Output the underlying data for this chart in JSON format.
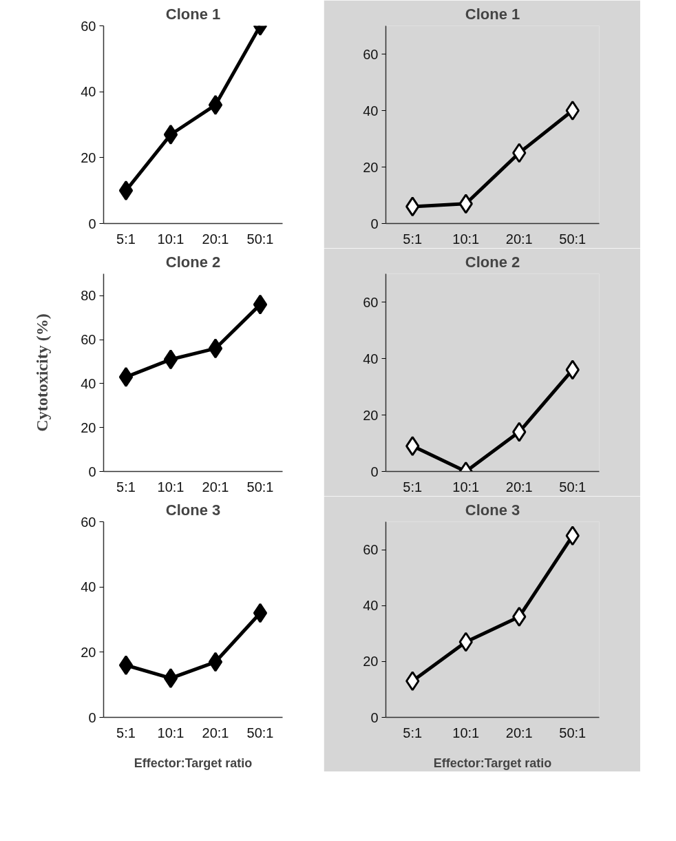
{
  "chart_data": [
    {
      "type": "line",
      "title": "Clone 1",
      "categories": [
        "5:1",
        "10:1",
        "20:1",
        "50:1"
      ],
      "series": [
        {
          "color": "#000000",
          "values": [
            10,
            27,
            36,
            60
          ]
        }
      ],
      "marker": "diamond",
      "ylim": [
        0,
        60
      ],
      "yticks": [
        0,
        20,
        40,
        60
      ],
      "grid": false
    },
    {
      "type": "line",
      "title": "Clone 1",
      "categories": [
        "5:1",
        "10:1",
        "20:1",
        "50:1"
      ],
      "series": [
        {
          "color": "#000000",
          "colors": [
            "#ffffff",
            "#ffffff",
            "#ffffff",
            "#ffffff"
          ],
          "values": [
            6,
            7,
            25,
            40
          ]
        }
      ],
      "marker": "diamond",
      "ylim": [
        0,
        70
      ],
      "yticks": [
        0,
        20,
        40,
        60
      ],
      "grid": false
    },
    {
      "type": "line",
      "title": "Clone 2",
      "ylabel": "Cytotoxicity (%)",
      "categories": [
        "5:1",
        "10:1",
        "20:1",
        "50:1"
      ],
      "series": [
        {
          "color": "#000000",
          "values": [
            43,
            51,
            56,
            76
          ]
        }
      ],
      "marker": "diamond",
      "ylim": [
        0,
        90
      ],
      "yticks": [
        0,
        20,
        40,
        60,
        80
      ],
      "grid": false
    },
    {
      "type": "line",
      "title": "Clone 2",
      "categories": [
        "5:1",
        "10:1",
        "20:1",
        "50:1"
      ],
      "series": [
        {
          "color": "#000000",
          "colors": [
            "#ffffff",
            "#ffffff",
            "#ffffff",
            "#ffffff"
          ],
          "values": [
            9,
            0,
            14,
            36
          ]
        }
      ],
      "marker": "diamond",
      "ylim": [
        0,
        70
      ],
      "yticks": [
        0,
        20,
        40,
        60
      ],
      "grid": false
    },
    {
      "type": "line",
      "title": "Clone 3",
      "xlabel": "Effector:Target ratio",
      "categories": [
        "5:1",
        "10:1",
        "20:1",
        "50:1"
      ],
      "series": [
        {
          "color": "#000000",
          "values": [
            16,
            12,
            17,
            32
          ]
        }
      ],
      "marker": "diamond",
      "ylim": [
        0,
        60
      ],
      "yticks": [
        0,
        20,
        40,
        60
      ],
      "grid": false
    },
    {
      "type": "line",
      "title": "Clone 3",
      "xlabel": "Effector:Target ratio",
      "categories": [
        "5:1",
        "10:1",
        "20:1",
        "50:1"
      ],
      "series": [
        {
          "color": "#000000",
          "colors": [
            "#ffffff",
            "#ffffff",
            "#ffffff",
            "#ffffff"
          ],
          "values": [
            13,
            27,
            36,
            65
          ]
        }
      ],
      "marker": "diamond",
      "ylim": [
        0,
        70
      ],
      "yticks": [
        0,
        20,
        40,
        60
      ],
      "grid": false
    }
  ]
}
